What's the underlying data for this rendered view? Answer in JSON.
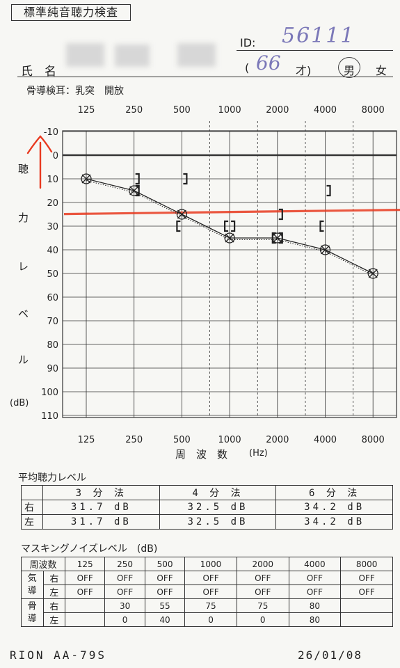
{
  "form_title": "標準純音聴力検査",
  "id_label": "ID:",
  "id_value": "56111",
  "name_label": "氏　名",
  "age_open": "(",
  "age_value": "66",
  "age_unit": "才)",
  "sex_male": "男",
  "sex_female": "女",
  "bone_note": "骨導検耳：乳突　開放",
  "y_axis_label": [
    "聴",
    "力",
    "レ",
    "ベ",
    "ル"
  ],
  "y_unit": "(dB)",
  "x_axis_label": "周　波　数",
  "x_unit": "(Hz)",
  "chart_data": {
    "type": "line",
    "x": [
      "125",
      "250",
      "500",
      "1000",
      "2000",
      "4000",
      "8000"
    ],
    "x_extra_dashed": [
      "750",
      "1500",
      "3000",
      "6000"
    ],
    "ylim": [
      -10,
      110
    ],
    "y_ticks": [
      "-10",
      "0",
      "10",
      "20",
      "30",
      "40",
      "50",
      "60",
      "70",
      "80",
      "90",
      "100",
      "110"
    ],
    "y_inverted": true,
    "series": [
      {
        "symbol": "air-right-O-left-X",
        "values": [
          10,
          15,
          25,
          35,
          35,
          40,
          50
        ]
      },
      {
        "symbol": "bone-right",
        "points": [
          [
            500,
            30
          ],
          [
            1000,
            30
          ],
          [
            2000,
            35
          ],
          [
            4000,
            30
          ]
        ]
      },
      {
        "symbol": "bone-left",
        "points": [
          [
            250,
            10
          ],
          [
            250,
            15
          ],
          [
            500,
            10
          ],
          [
            1000,
            30
          ],
          [
            2000,
            25
          ],
          [
            2000,
            35
          ],
          [
            4000,
            15
          ]
        ]
      }
    ],
    "annotations": {
      "red_line_db": 24,
      "arrow_color": "#e8391f"
    }
  },
  "avg": {
    "title": "平均聴力レベル",
    "headers": [
      "3 分 法",
      "4 分 法",
      "6 分 法"
    ],
    "rows": [
      {
        "side": "右",
        "values": [
          "31.7 dB",
          "32.5 dB",
          "34.2 dB"
        ]
      },
      {
        "side": "左",
        "values": [
          "31.7 dB",
          "32.5 dB",
          "34.2 dB"
        ]
      }
    ]
  },
  "mask": {
    "title": "マスキングノイズレベル　(dB)",
    "freq_header": "周波数",
    "freqs": [
      "125",
      "250",
      "500",
      "1000",
      "2000",
      "4000",
      "8000"
    ],
    "air_label": [
      "気",
      "導"
    ],
    "bone_label": [
      "骨",
      "導"
    ],
    "right": "右",
    "left": "左",
    "air_right": [
      "OFF",
      "OFF",
      "OFF",
      "OFF",
      "OFF",
      "OFF",
      "OFF"
    ],
    "air_left": [
      "OFF",
      "OFF",
      "OFF",
      "OFF",
      "OFF",
      "OFF",
      "OFF"
    ],
    "bone_right": [
      "",
      "30",
      "55",
      "75",
      "75",
      "80",
      ""
    ],
    "bone_left": [
      "",
      "0",
      "40",
      "0",
      "0",
      "80",
      ""
    ]
  },
  "footer_model": "RION  AA-79S",
  "footer_date": "26/01/08",
  "colors": {
    "red": "#e8391f",
    "ink": "#222222",
    "pen": "#7b78b8"
  }
}
